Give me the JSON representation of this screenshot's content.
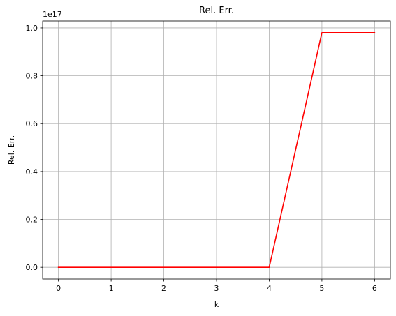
{
  "chart_data": {
    "type": "line",
    "title": "Rel. Err.",
    "xlabel": "k",
    "ylabel": "Rel. Err.",
    "y_offset_label": "1e17",
    "xlim": [
      -0.3,
      6.3
    ],
    "ylim": [
      -0.049,
      1.029
    ],
    "x_ticks": [
      0,
      1,
      2,
      3,
      4,
      5,
      6
    ],
    "x_tick_labels": [
      "0",
      "1",
      "2",
      "3",
      "4",
      "5",
      "6"
    ],
    "y_ticks": [
      0.0,
      0.2,
      0.4,
      0.6,
      0.8,
      1.0
    ],
    "y_tick_labels": [
      "0.0",
      "0.2",
      "0.4",
      "0.6",
      "0.8",
      "1.0"
    ],
    "grid": true,
    "series": [
      {
        "color": "#ff0000",
        "x": [
          0,
          1,
          2,
          3,
          4,
          5,
          6
        ],
        "y": [
          0.0,
          0.0,
          0.0,
          0.0,
          0.0,
          0.98,
          0.98
        ]
      }
    ]
  }
}
